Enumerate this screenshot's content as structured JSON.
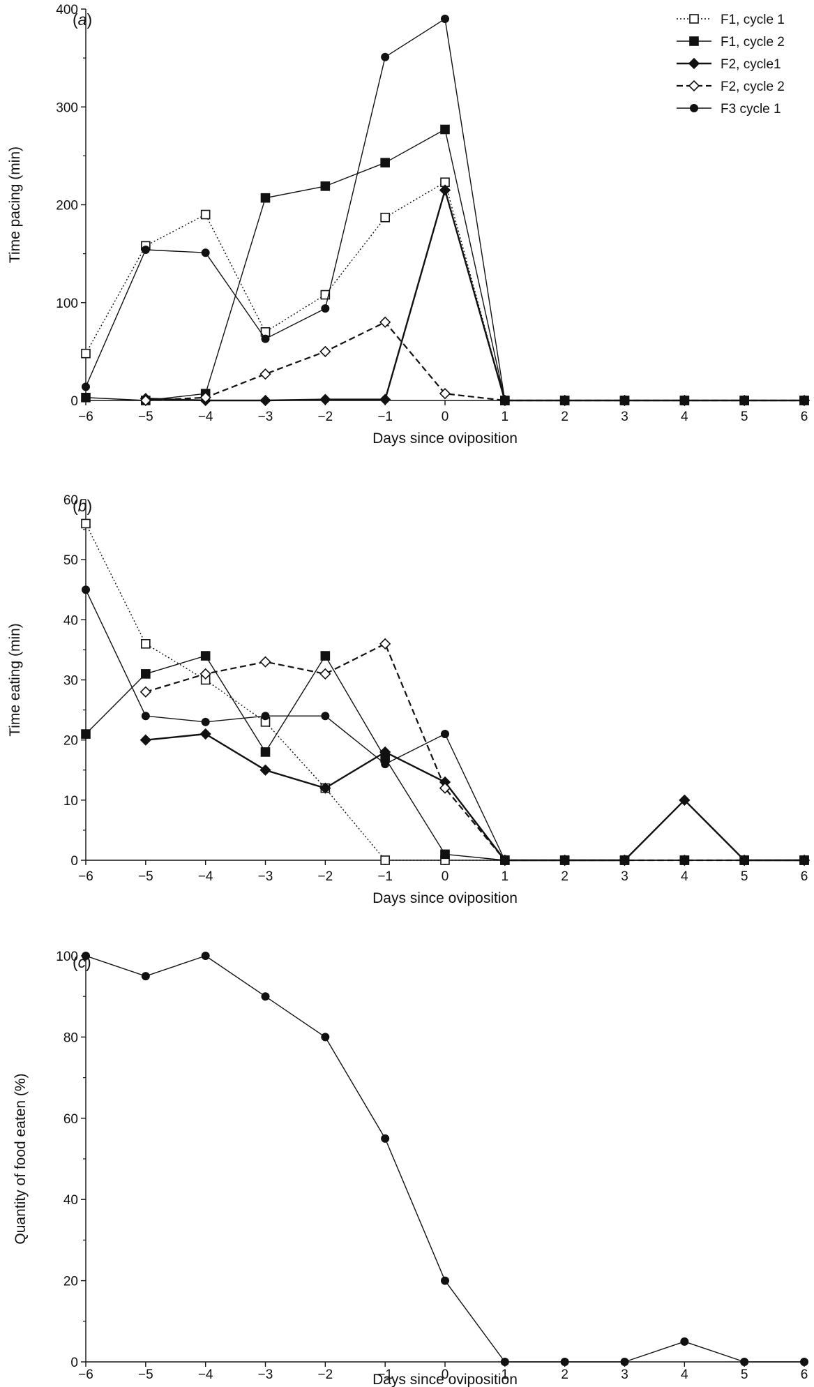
{
  "chart_data": [
    {
      "type": "line",
      "panel_label": "(a)",
      "xlabel": "Days since oviposition",
      "ylabel": "Time pacing (min)",
      "x": [
        -6,
        -5,
        -4,
        -3,
        -2,
        -1,
        0,
        1,
        2,
        3,
        4,
        5,
        6
      ],
      "x_ticks": [
        "−6",
        "−5",
        "−4",
        "−3",
        "−2",
        "−1",
        "0",
        "1",
        "2",
        "3",
        "4",
        "5",
        "6"
      ],
      "ylim": [
        0,
        400
      ],
      "y_ticks": [
        "0",
        "100",
        "200",
        "300",
        "400"
      ],
      "y_tick_values": [
        0,
        100,
        200,
        300,
        400
      ],
      "legend": "top-right",
      "series": [
        {
          "name": "F1, cycle 1",
          "marker": "square-open",
          "dash": "dotted",
          "values": [
            48,
            158,
            190,
            70,
            108,
            187,
            223,
            0,
            0,
            0,
            0,
            0,
            0
          ]
        },
        {
          "name": "F1, cycle 2",
          "marker": "square-filled",
          "dash": "solid",
          "values": [
            3,
            0,
            7,
            207,
            219,
            243,
            277,
            0,
            0,
            0,
            0,
            0,
            0
          ]
        },
        {
          "name": "F2, cycle1",
          "marker": "diamond-filled",
          "dash": "solid",
          "values": [
            null,
            2,
            0,
            0,
            1,
            1,
            215,
            0,
            0,
            0,
            0,
            0,
            0
          ]
        },
        {
          "name": "F2, cycle 2",
          "marker": "diamond-open",
          "dash": "dashed",
          "values": [
            null,
            0,
            3,
            27,
            50,
            80,
            7,
            0,
            0,
            0,
            0,
            0,
            0
          ]
        },
        {
          "name": "F3 cycle 1",
          "marker": "circle-filled",
          "dash": "solid",
          "values": [
            14,
            154,
            151,
            63,
            94,
            351,
            390,
            0,
            0,
            0,
            0,
            0,
            0
          ]
        }
      ]
    },
    {
      "type": "line",
      "panel_label": "(b)",
      "xlabel": "Days since oviposition",
      "ylabel": "Time eating (min)",
      "x": [
        -6,
        -5,
        -4,
        -3,
        -2,
        -1,
        0,
        1,
        2,
        3,
        4,
        5,
        6
      ],
      "x_ticks": [
        "−6",
        "−5",
        "−4",
        "−3",
        "−2",
        "−1",
        "0",
        "1",
        "2",
        "3",
        "4",
        "5",
        "6"
      ],
      "ylim": [
        0,
        60
      ],
      "y_ticks": [
        "0",
        "10",
        "20",
        "30",
        "40",
        "50",
        "60"
      ],
      "y_tick_values": [
        0,
        10,
        20,
        30,
        40,
        50,
        60
      ],
      "series": [
        {
          "name": "F1, cycle 1",
          "marker": "square-open",
          "dash": "dotted",
          "values": [
            56,
            36,
            30,
            23,
            12,
            0,
            0,
            0,
            0,
            0,
            0,
            0,
            0
          ]
        },
        {
          "name": "F1, cycle 2",
          "marker": "square-filled",
          "dash": "solid",
          "values": [
            21,
            31,
            34,
            18,
            34,
            17,
            1,
            0,
            0,
            0,
            0,
            0,
            0
          ]
        },
        {
          "name": "F2, cycle1",
          "marker": "diamond-filled",
          "dash": "solid",
          "values": [
            null,
            20,
            21,
            15,
            12,
            18,
            13,
            0,
            0,
            0,
            10,
            0,
            0
          ]
        },
        {
          "name": "F2, cycle 2",
          "marker": "diamond-open",
          "dash": "dashed",
          "values": [
            null,
            28,
            31,
            33,
            31,
            36,
            12,
            0,
            0,
            0,
            0,
            0,
            0
          ]
        },
        {
          "name": "F3 cycle 1",
          "marker": "circle-filled",
          "dash": "solid",
          "values": [
            45,
            24,
            23,
            24,
            24,
            16,
            21,
            0,
            0,
            0,
            0,
            0,
            0
          ]
        }
      ]
    },
    {
      "type": "line",
      "panel_label": "(c)",
      "xlabel": "Days since oviposition",
      "ylabel": "Quantity of food eaten (%)",
      "x": [
        -6,
        -5,
        -4,
        -3,
        -2,
        -1,
        0,
        1,
        2,
        3,
        4,
        5,
        6
      ],
      "x_ticks": [
        "−6",
        "−5",
        "−4",
        "−3",
        "−2",
        "−1",
        "0",
        "1",
        "2",
        "3",
        "4",
        "5",
        "6"
      ],
      "ylim": [
        0,
        100
      ],
      "y_ticks": [
        "0",
        "20",
        "40",
        "60",
        "80",
        "100"
      ],
      "y_tick_values": [
        0,
        20,
        40,
        60,
        80,
        100
      ],
      "series": [
        {
          "marker": "circle-filled",
          "dash": "solid",
          "values": [
            100,
            95,
            100,
            90,
            80,
            55,
            20,
            0,
            0,
            0,
            5,
            0,
            0
          ]
        }
      ]
    }
  ]
}
